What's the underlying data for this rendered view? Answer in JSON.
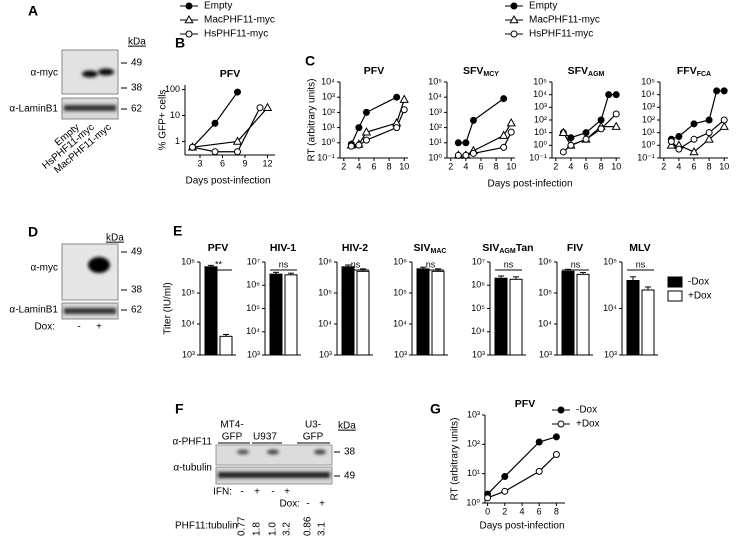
{
  "figure": {
    "panels": [
      "A",
      "B",
      "C",
      "D",
      "E",
      "F",
      "G"
    ]
  },
  "blot_A": {
    "kda": "kDa",
    "rows": [
      "α-myc",
      "α-LaminB1"
    ],
    "markers": [
      "49",
      "38",
      "62"
    ],
    "lanes": [
      "Empty",
      "HsPHF11-myc",
      "MacPHF11-myc"
    ]
  },
  "blot_D": {
    "kda": "kDa",
    "rows": [
      "α-myc",
      "α-LaminB1"
    ],
    "markers": [
      "49",
      "38",
      "62"
    ],
    "condition": "Dox:",
    "lanes": [
      "-",
      "+"
    ]
  },
  "blot_F": {
    "groups": [
      [
        "MT4-",
        "GFP"
      ],
      [
        "U937"
      ],
      [
        "U3-",
        "GFP"
      ]
    ],
    "kda": "kDa",
    "rows": [
      "α-PHF11",
      "α-tubulin"
    ],
    "markers": [
      "38",
      "49"
    ],
    "ifn": {
      "label": "IFN:",
      "lanes": [
        "-",
        "+",
        "-",
        "+"
      ]
    },
    "dox": {
      "label": "Dox:",
      "lanes": [
        "-",
        "+"
      ]
    },
    "ratio_label": "PHF11:tubulin",
    "ratios": [
      "0.77",
      "1.8",
      "1.0",
      "3.2",
      "0.86",
      "3.1"
    ]
  },
  "chart_data": [
    {
      "type": "line",
      "title": "PFV",
      "y_label": "% GFP+ cells",
      "x_label": "Days post-infection",
      "log_y": true,
      "legend": "top",
      "xlim": [
        1,
        13
      ],
      "xticks": [
        3,
        6,
        9,
        12
      ],
      "ylim": [
        0.3,
        150
      ],
      "yticks": [
        1,
        10,
        100
      ],
      "series": [
        {
          "name": "Empty",
          "marker": "filled-circle",
          "color": "#000000",
          "x": [
            2,
            5,
            8
          ],
          "values": [
            0.6,
            5,
            80
          ]
        },
        {
          "name": "MacPHF11-myc",
          "marker": "open-triangle",
          "color": "#000000",
          "x": [
            2,
            8,
            12
          ],
          "values": [
            0.6,
            1,
            20
          ]
        },
        {
          "name": "HsPHF11-myc",
          "marker": "open-circle",
          "color": "#000000",
          "x": [
            2,
            5,
            8,
            11
          ],
          "values": [
            0.6,
            0.4,
            0.4,
            20
          ]
        }
      ]
    },
    {
      "type": "line",
      "title": "PFV",
      "y_label": "RT (arbitrary units)",
      "x_label": "Days post-infection",
      "log_y": true,
      "legend": "top",
      "xlim": [
        1.5,
        10.5
      ],
      "xticks": [
        2,
        4,
        6,
        8,
        10
      ],
      "ylim": [
        0.1,
        10000
      ],
      "yticks": [
        {
          "value": 0.1,
          "label": "10⁻¹"
        },
        {
          "value": 1,
          "label": "10⁰"
        },
        {
          "value": 10,
          "label": "10¹"
        },
        {
          "value": 100,
          "label": "10²"
        },
        {
          "value": 1000,
          "label": "10³"
        },
        {
          "value": 10000,
          "label": "10⁴"
        }
      ],
      "series": [
        {
          "name": "Empty",
          "marker": "filled-circle",
          "color": "#000000",
          "x": [
            3,
            4,
            5,
            9
          ],
          "values": [
            0.8,
            10,
            100,
            1000
          ]
        },
        {
          "name": "MacPHF11-myc",
          "marker": "open-triangle",
          "color": "#000000",
          "x": [
            3,
            4,
            5,
            9,
            10
          ],
          "values": [
            0.7,
            0.8,
            5,
            20,
            700
          ]
        },
        {
          "name": "HsPHF11-myc",
          "marker": "open-circle",
          "color": "#000000",
          "x": [
            3,
            4,
            5,
            9,
            10
          ],
          "values": [
            0.6,
            0.7,
            1.5,
            10,
            150
          ]
        }
      ]
    },
    {
      "type": "line",
      "title": "SFV",
      "title_subscript": "MCY",
      "log_y": true,
      "xlim": [
        1.5,
        10.5
      ],
      "xticks": [
        2,
        4,
        6,
        8,
        10
      ],
      "ylim": [
        1,
        100000
      ],
      "yticks": [
        {
          "value": 1,
          "label": "10⁰"
        },
        {
          "value": 10,
          "label": "10¹"
        },
        {
          "value": 100,
          "label": "10²"
        },
        {
          "value": 1000,
          "label": "10³"
        },
        {
          "value": 10000,
          "label": "10⁴"
        },
        {
          "value": 100000,
          "label": "10⁵"
        }
      ],
      "series": [
        {
          "marker": "filled-circle",
          "color": "#000000",
          "x": [
            3,
            4,
            5,
            9
          ],
          "values": [
            10,
            10,
            300,
            8000
          ]
        },
        {
          "marker": "open-triangle",
          "color": "#000000",
          "x": [
            3,
            4,
            5,
            9,
            10
          ],
          "values": [
            1.5,
            1.5,
            3,
            30,
            200
          ]
        },
        {
          "marker": "open-circle",
          "color": "#000000",
          "x": [
            3,
            4,
            5,
            9,
            10
          ],
          "values": [
            1.5,
            1.5,
            2,
            5,
            50
          ]
        }
      ]
    },
    {
      "type": "line",
      "title": "SFV",
      "title_subscript": "AGM",
      "log_y": true,
      "xlim": [
        1.5,
        10.5
      ],
      "xticks": [
        2,
        4,
        6,
        8,
        10
      ],
      "ylim": [
        0.1,
        100000
      ],
      "yticks": [
        {
          "value": 0.1,
          "label": "10⁻¹"
        },
        {
          "value": 1,
          "label": "10⁰"
        },
        {
          "value": 10,
          "label": "10¹"
        },
        {
          "value": 100,
          "label": "10²"
        },
        {
          "value": 1000,
          "label": "10³"
        },
        {
          "value": 10000,
          "label": "10⁴"
        },
        {
          "value": 100000,
          "label": "10⁵"
        }
      ],
      "series": [
        {
          "marker": "filled-circle",
          "color": "#000000",
          "x": [
            3,
            4,
            6,
            8,
            9,
            10
          ],
          "values": [
            10,
            4,
            10,
            100,
            10000,
            10000
          ]
        },
        {
          "marker": "open-triangle",
          "color": "#000000",
          "x": [
            3,
            4,
            6,
            8,
            10
          ],
          "values": [
            10,
            1,
            3,
            30,
            30
          ]
        },
        {
          "marker": "open-circle",
          "color": "#000000",
          "x": [
            3,
            4,
            6,
            8,
            10
          ],
          "values": [
            0.3,
            1,
            3,
            20,
            300
          ]
        }
      ]
    },
    {
      "type": "line",
      "title": "FFV",
      "title_subscript": "FCA",
      "log_y": true,
      "xlim": [
        1.5,
        10.5
      ],
      "xticks": [
        2,
        4,
        6,
        8,
        10
      ],
      "ylim": [
        0.1,
        100000
      ],
      "yticks": [
        {
          "value": 0.1,
          "label": "10⁻¹"
        },
        {
          "value": 1,
          "label": "10⁰"
        },
        {
          "value": 10,
          "label": "10¹"
        },
        {
          "value": 100,
          "label": "10²"
        },
        {
          "value": 1000,
          "label": "10³"
        },
        {
          "value": 10000,
          "label": "10⁴"
        },
        {
          "value": 100000,
          "label": "10⁵"
        }
      ],
      "series": [
        {
          "marker": "filled-circle",
          "color": "#000000",
          "x": [
            3,
            4,
            6,
            8,
            9,
            10
          ],
          "values": [
            3,
            5,
            50,
            100,
            20000,
            20000
          ]
        },
        {
          "marker": "open-triangle",
          "color": "#000000",
          "x": [
            3,
            4,
            6,
            8,
            10
          ],
          "values": [
            1,
            1,
            0.3,
            3,
            30
          ]
        },
        {
          "marker": "open-circle",
          "color": "#000000",
          "x": [
            3,
            4,
            6,
            8,
            10
          ],
          "values": [
            2,
            0.5,
            3,
            10,
            100
          ]
        }
      ]
    },
    {
      "type": "bar",
      "title": "PFV",
      "y_label": "Titer (IU/ml)",
      "legend": "right",
      "annotation": "**",
      "log_y": true,
      "ylim": [
        1000,
        1000000
      ],
      "yticks": [
        {
          "value": 1000,
          "label": "10³"
        },
        {
          "value": 10000,
          "label": "10⁴"
        },
        {
          "value": 100000,
          "label": "10⁵"
        },
        {
          "value": 1000000,
          "label": "10⁶"
        }
      ],
      "series": [
        {
          "name": "-Dox",
          "color": "#000000",
          "values": [
            700000
          ],
          "errors": [
            80000
          ]
        },
        {
          "name": "+Dox",
          "color": "#ffffff",
          "values": [
            4000
          ],
          "errors": [
            600
          ]
        }
      ]
    },
    {
      "type": "bar",
      "title": "HIV-1",
      "annotation": "ns",
      "log_y": true,
      "ylim": [
        1000,
        10000000
      ],
      "yticks": [
        {
          "value": 1000,
          "label": "10³"
        },
        {
          "value": 10000,
          "label": "10⁴"
        },
        {
          "value": 100000,
          "label": "10⁵"
        },
        {
          "value": 1000000,
          "label": "10⁶"
        },
        {
          "value": 10000000,
          "label": "10⁷"
        }
      ],
      "series": [
        {
          "color": "#000000",
          "values": [
            3000000
          ],
          "errors": [
            600000
          ]
        },
        {
          "color": "#ffffff",
          "values": [
            2800000
          ],
          "errors": [
            500000
          ]
        }
      ]
    },
    {
      "type": "bar",
      "title": "HIV-2",
      "annotation": "ns",
      "log_y": true,
      "ylim": [
        1000,
        1000000
      ],
      "yticks": [
        {
          "value": 1000,
          "label": "10³"
        },
        {
          "value": 10000,
          "label": "10⁴"
        },
        {
          "value": 100000,
          "label": "10⁵"
        },
        {
          "value": 1000000,
          "label": "10⁶"
        }
      ],
      "series": [
        {
          "color": "#000000",
          "values": [
            700000
          ],
          "errors": [
            100000
          ]
        },
        {
          "color": "#ffffff",
          "values": [
            500000
          ],
          "errors": [
            100000
          ]
        }
      ]
    },
    {
      "type": "bar",
      "title": "SIV",
      "title_subscript": "MAC",
      "annotation": "ns",
      "log_y": true,
      "ylim": [
        1000,
        1000000
      ],
      "yticks": [
        {
          "value": 1000,
          "label": "10³"
        },
        {
          "value": 10000,
          "label": "10⁴"
        },
        {
          "value": 100000,
          "label": "10⁵"
        },
        {
          "value": 1000000,
          "label": "10⁶"
        }
      ],
      "series": [
        {
          "color": "#000000",
          "values": [
            600000
          ],
          "errors": [
            80000
          ]
        },
        {
          "color": "#ffffff",
          "values": [
            500000
          ],
          "errors": [
            100000
          ]
        }
      ]
    },
    {
      "type": "bar",
      "title": "SIV",
      "title_subscript": "AGM",
      "title_suffix": "Tan",
      "annotation": "ns",
      "log_y": true,
      "ylim": [
        1000,
        10000000
      ],
      "yticks": [
        {
          "value": 1000,
          "label": "10³"
        },
        {
          "value": 10000,
          "label": "10⁴"
        },
        {
          "value": 100000,
          "label": "10⁵"
        },
        {
          "value": 1000000,
          "label": "10⁶"
        },
        {
          "value": 10000000,
          "label": "10⁷"
        }
      ],
      "series": [
        {
          "color": "#000000",
          "values": [
            2000000
          ],
          "errors": [
            500000
          ]
        },
        {
          "color": "#ffffff",
          "values": [
            1800000
          ],
          "errors": [
            500000
          ]
        }
      ]
    },
    {
      "type": "bar",
      "title": "FIV",
      "annotation": "ns",
      "log_y": true,
      "ylim": [
        1000,
        1000000
      ],
      "yticks": [
        {
          "value": 1000,
          "label": "10³"
        },
        {
          "value": 10000,
          "label": "10⁴"
        },
        {
          "value": 100000,
          "label": "10⁵"
        },
        {
          "value": 1000000,
          "label": "10⁶"
        }
      ],
      "series": [
        {
          "color": "#000000",
          "values": [
            500000
          ],
          "errors": [
            80000
          ]
        },
        {
          "color": "#ffffff",
          "values": [
            400000
          ],
          "errors": [
            60000
          ]
        }
      ]
    },
    {
      "type": "bar",
      "title": "MLV",
      "annotation": "ns",
      "log_y": true,
      "ylim": [
        1000,
        100000
      ],
      "yticks": [
        {
          "value": 1000,
          "label": "10³"
        },
        {
          "value": 10000,
          "label": "10⁴"
        },
        {
          "value": 100000,
          "label": "10⁵"
        }
      ],
      "series": [
        {
          "color": "#000000",
          "values": [
            40000
          ],
          "errors": [
            8000
          ]
        },
        {
          "color": "#ffffff",
          "values": [
            25000
          ],
          "errors": [
            4000
          ]
        }
      ]
    },
    {
      "type": "line",
      "title": "PFV",
      "y_label": "RT (arbitrary units)",
      "x_label": "Days post-infection",
      "log_y": true,
      "legend": "top-right",
      "x": [
        0,
        2,
        6,
        8
      ],
      "xlim": [
        -0.3,
        9
      ],
      "xticks": [
        0,
        2,
        4,
        6,
        8
      ],
      "ylim": [
        1,
        1000
      ],
      "yticks": [
        {
          "value": 1,
          "label": "10⁰"
        },
        {
          "value": 10,
          "label": "10¹"
        },
        {
          "value": 100,
          "label": "10²"
        },
        {
          "value": 1000,
          "label": "10³"
        }
      ],
      "series": [
        {
          "name": "-Dox",
          "marker": "filled-circle",
          "color": "#000000",
          "values": [
            2,
            8,
            120,
            180
          ]
        },
        {
          "name": "+Dox",
          "marker": "open-circle",
          "color": "#000000",
          "values": [
            1.5,
            2.5,
            12,
            45
          ]
        }
      ]
    }
  ]
}
